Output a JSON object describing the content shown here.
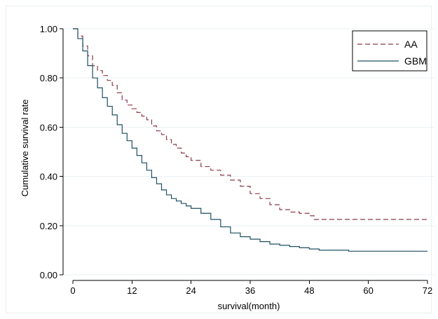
{
  "chart_data": {
    "type": "line",
    "title": "",
    "xlabel": "survival(month)",
    "ylabel": "Cumulative survival rate",
    "xlim": [
      0,
      72
    ],
    "ylim": [
      0,
      1
    ],
    "xticks": [
      0,
      12,
      24,
      36,
      48,
      60,
      72
    ],
    "yticks": [
      "0.00",
      "0.20",
      "0.40",
      "0.60",
      "0.80",
      "1.00"
    ],
    "grid": "horizontal",
    "legend_position": "top-right",
    "series": [
      {
        "name": "AA",
        "color": "#8b3a4a",
        "style": "dashed",
        "step": true,
        "points": [
          [
            0,
            1.0
          ],
          [
            1,
            0.97
          ],
          [
            2,
            0.93
          ],
          [
            3,
            0.89
          ],
          [
            4,
            0.85
          ],
          [
            5,
            0.83
          ],
          [
            6,
            0.81
          ],
          [
            7,
            0.79
          ],
          [
            8,
            0.77
          ],
          [
            9,
            0.74
          ],
          [
            10,
            0.71
          ],
          [
            11,
            0.69
          ],
          [
            12,
            0.675
          ],
          [
            13,
            0.66
          ],
          [
            14,
            0.645
          ],
          [
            15,
            0.63
          ],
          [
            16,
            0.605
          ],
          [
            17,
            0.585
          ],
          [
            18,
            0.57
          ],
          [
            19,
            0.55
          ],
          [
            20,
            0.53
          ],
          [
            21,
            0.515
          ],
          [
            22,
            0.495
          ],
          [
            23,
            0.48
          ],
          [
            24,
            0.465
          ],
          [
            26,
            0.44
          ],
          [
            28,
            0.425
          ],
          [
            30,
            0.405
          ],
          [
            32,
            0.385
          ],
          [
            34,
            0.36
          ],
          [
            36,
            0.33
          ],
          [
            38,
            0.31
          ],
          [
            40,
            0.285
          ],
          [
            42,
            0.265
          ],
          [
            44,
            0.255
          ],
          [
            46,
            0.25
          ],
          [
            48,
            0.24
          ],
          [
            49,
            0.225
          ],
          [
            72,
            0.225
          ]
        ]
      },
      {
        "name": "GBM",
        "color": "#1f4f63",
        "style": "solid",
        "step": true,
        "points": [
          [
            0,
            1.0
          ],
          [
            1,
            0.96
          ],
          [
            2,
            0.91
          ],
          [
            3,
            0.85
          ],
          [
            4,
            0.8
          ],
          [
            5,
            0.76
          ],
          [
            6,
            0.72
          ],
          [
            7,
            0.685
          ],
          [
            8,
            0.65
          ],
          [
            9,
            0.61
          ],
          [
            10,
            0.575
          ],
          [
            11,
            0.545
          ],
          [
            12,
            0.515
          ],
          [
            13,
            0.485
          ],
          [
            14,
            0.455
          ],
          [
            15,
            0.425
          ],
          [
            16,
            0.395
          ],
          [
            17,
            0.37
          ],
          [
            18,
            0.345
          ],
          [
            19,
            0.325
          ],
          [
            20,
            0.31
          ],
          [
            21,
            0.3
          ],
          [
            22,
            0.29
          ],
          [
            23,
            0.28
          ],
          [
            24,
            0.27
          ],
          [
            26,
            0.25
          ],
          [
            28,
            0.225
          ],
          [
            30,
            0.195
          ],
          [
            32,
            0.17
          ],
          [
            34,
            0.155
          ],
          [
            36,
            0.145
          ],
          [
            38,
            0.135
          ],
          [
            40,
            0.125
          ],
          [
            42,
            0.12
          ],
          [
            44,
            0.115
          ],
          [
            46,
            0.11
          ],
          [
            48,
            0.105
          ],
          [
            50,
            0.1
          ],
          [
            52,
            0.1
          ],
          [
            56,
            0.096
          ],
          [
            72,
            0.096
          ]
        ]
      }
    ]
  }
}
